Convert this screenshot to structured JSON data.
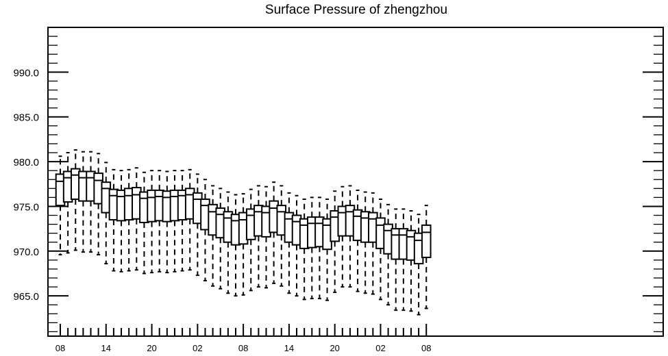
{
  "chart_data": {
    "type": "box",
    "title": "Surface Pressure of zhengzhou",
    "xlabel": "",
    "ylabel": "",
    "ylim": [
      960.5,
      995.0
    ],
    "y_ticks": [
      "990.0",
      "985.0",
      "980.0",
      "975.0",
      "970.0",
      "965.0"
    ],
    "y_tick_values": [
      990,
      985,
      980,
      975,
      970,
      965
    ],
    "x_ticks": [
      "08",
      "14",
      "20",
      "02",
      "08",
      "14",
      "20",
      "02",
      "08"
    ],
    "x_tick_steps": [
      0,
      6,
      12,
      18,
      24,
      30,
      36,
      42,
      48
    ],
    "grid": false,
    "boxes": [
      {
        "step": 0,
        "whisker_low": 969.6,
        "q1": 975.1,
        "median": 977.8,
        "q3": 978.6,
        "whisker_high": 980.6
      },
      {
        "step": 1,
        "whisker_low": 969.8,
        "q1": 975.5,
        "median": 978.2,
        "q3": 978.9,
        "whisker_high": 981.0
      },
      {
        "step": 2,
        "whisker_low": 970.1,
        "q1": 975.8,
        "median": 978.5,
        "q3": 979.2,
        "whisker_high": 981.3
      },
      {
        "step": 3,
        "whisker_low": 969.9,
        "q1": 975.6,
        "median": 978.2,
        "q3": 978.9,
        "whisker_high": 981.1
      },
      {
        "step": 4,
        "whisker_low": 969.9,
        "q1": 975.6,
        "median": 978.2,
        "q3": 978.9,
        "whisker_high": 981.1
      },
      {
        "step": 5,
        "whisker_low": 969.6,
        "q1": 975.3,
        "median": 977.9,
        "q3": 978.7,
        "whisker_high": 980.9
      },
      {
        "step": 6,
        "whisker_low": 968.6,
        "q1": 974.3,
        "median": 977.0,
        "q3": 977.7,
        "whisker_high": 979.9
      },
      {
        "step": 7,
        "whisker_low": 967.8,
        "q1": 973.5,
        "median": 976.2,
        "q3": 976.9,
        "whisker_high": 979.1
      },
      {
        "step": 8,
        "whisker_low": 967.7,
        "q1": 973.4,
        "median": 976.1,
        "q3": 976.8,
        "whisker_high": 979.0
      },
      {
        "step": 9,
        "whisker_low": 967.8,
        "q1": 973.5,
        "median": 976.2,
        "q3": 977.0,
        "whisker_high": 979.1
      },
      {
        "step": 10,
        "whisker_low": 967.9,
        "q1": 973.6,
        "median": 976.3,
        "q3": 977.1,
        "whisker_high": 979.3
      },
      {
        "step": 11,
        "whisker_low": 967.5,
        "q1": 973.2,
        "median": 975.9,
        "q3": 976.6,
        "whisker_high": 978.8
      },
      {
        "step": 12,
        "whisker_low": 967.6,
        "q1": 973.3,
        "median": 976.0,
        "q3": 976.8,
        "whisker_high": 979.0
      },
      {
        "step": 13,
        "whisker_low": 967.7,
        "q1": 973.4,
        "median": 976.1,
        "q3": 976.8,
        "whisker_high": 979.0
      },
      {
        "step": 14,
        "whisker_low": 967.6,
        "q1": 973.3,
        "median": 976.0,
        "q3": 976.7,
        "whisker_high": 978.9
      },
      {
        "step": 15,
        "whisker_low": 967.7,
        "q1": 973.4,
        "median": 976.1,
        "q3": 976.8,
        "whisker_high": 979.0
      },
      {
        "step": 16,
        "whisker_low": 967.8,
        "q1": 973.5,
        "median": 976.2,
        "q3": 976.8,
        "whisker_high": 979.0
      },
      {
        "step": 17,
        "whisker_low": 967.9,
        "q1": 973.6,
        "median": 976.3,
        "q3": 977.0,
        "whisker_high": 979.1
      },
      {
        "step": 18,
        "whisker_low": 967.3,
        "q1": 973.1,
        "median": 975.8,
        "q3": 976.5,
        "whisker_high": 978.6
      },
      {
        "step": 19,
        "whisker_low": 966.7,
        "q1": 972.4,
        "median": 975.1,
        "q3": 975.8,
        "whisker_high": 978.0
      },
      {
        "step": 20,
        "whisker_low": 966.1,
        "q1": 971.8,
        "median": 974.4,
        "q3": 975.2,
        "whisker_high": 977.3
      },
      {
        "step": 21,
        "whisker_low": 965.8,
        "q1": 971.5,
        "median": 974.1,
        "q3": 974.8,
        "whisker_high": 977.0
      },
      {
        "step": 22,
        "whisker_low": 965.3,
        "q1": 971.0,
        "median": 973.7,
        "q3": 974.4,
        "whisker_high": 976.6
      },
      {
        "step": 23,
        "whisker_low": 965.0,
        "q1": 970.7,
        "median": 973.4,
        "q3": 974.1,
        "whisker_high": 976.3
      },
      {
        "step": 24,
        "whisker_low": 965.1,
        "q1": 970.8,
        "median": 973.5,
        "q3": 974.3,
        "whisker_high": 976.4
      },
      {
        "step": 25,
        "whisker_low": 965.6,
        "q1": 971.3,
        "median": 974.0,
        "q3": 974.7,
        "whisker_high": 976.9
      },
      {
        "step": 26,
        "whisker_low": 966.0,
        "q1": 971.7,
        "median": 974.4,
        "q3": 975.1,
        "whisker_high": 977.3
      },
      {
        "step": 27,
        "whisker_low": 965.9,
        "q1": 971.6,
        "median": 974.3,
        "q3": 975.0,
        "whisker_high": 977.2
      },
      {
        "step": 28,
        "whisker_low": 966.4,
        "q1": 972.1,
        "median": 974.8,
        "q3": 975.6,
        "whisker_high": 977.7
      },
      {
        "step": 29,
        "whisker_low": 966.1,
        "q1": 971.8,
        "median": 974.4,
        "q3": 975.1,
        "whisker_high": 977.3
      },
      {
        "step": 30,
        "whisker_low": 965.3,
        "q1": 971.0,
        "median": 973.6,
        "q3": 974.3,
        "whisker_high": 976.5
      },
      {
        "step": 31,
        "whisker_low": 965.0,
        "q1": 970.7,
        "median": 973.3,
        "q3": 974.0,
        "whisker_high": 976.2
      },
      {
        "step": 32,
        "whisker_low": 964.6,
        "q1": 970.3,
        "median": 972.9,
        "q3": 973.6,
        "whisker_high": 975.8
      },
      {
        "step": 33,
        "whisker_low": 964.7,
        "q1": 970.4,
        "median": 973.1,
        "q3": 973.8,
        "whisker_high": 976.0
      },
      {
        "step": 34,
        "whisker_low": 964.7,
        "q1": 970.5,
        "median": 973.1,
        "q3": 973.8,
        "whisker_high": 976.0
      },
      {
        "step": 35,
        "whisker_low": 964.5,
        "q1": 970.2,
        "median": 972.9,
        "q3": 973.6,
        "whisker_high": 975.8
      },
      {
        "step": 36,
        "whisker_low": 965.4,
        "q1": 971.1,
        "median": 973.8,
        "q3": 974.5,
        "whisker_high": 976.7
      },
      {
        "step": 37,
        "whisker_low": 966.0,
        "q1": 971.7,
        "median": 974.3,
        "q3": 975.0,
        "whisker_high": 977.2
      },
      {
        "step": 38,
        "whisker_low": 966.0,
        "q1": 971.7,
        "median": 974.4,
        "q3": 975.1,
        "whisker_high": 977.3
      },
      {
        "step": 39,
        "whisker_low": 965.5,
        "q1": 971.2,
        "median": 973.9,
        "q3": 974.6,
        "whisker_high": 976.8
      },
      {
        "step": 40,
        "whisker_low": 965.3,
        "q1": 971.0,
        "median": 973.7,
        "q3": 974.4,
        "whisker_high": 976.6
      },
      {
        "step": 41,
        "whisker_low": 965.2,
        "q1": 971.0,
        "median": 973.6,
        "q3": 974.3,
        "whisker_high": 976.5
      },
      {
        "step": 42,
        "whisker_low": 964.6,
        "q1": 970.3,
        "median": 972.9,
        "q3": 973.7,
        "whisker_high": 975.8
      },
      {
        "step": 43,
        "whisker_low": 964.0,
        "q1": 969.7,
        "median": 972.3,
        "q3": 973.0,
        "whisker_high": 975.2
      },
      {
        "step": 44,
        "whisker_low": 963.4,
        "q1": 969.1,
        "median": 971.8,
        "q3": 972.5,
        "whisker_high": 974.7
      },
      {
        "step": 45,
        "whisker_low": 963.4,
        "q1": 969.1,
        "median": 971.8,
        "q3": 972.5,
        "whisker_high": 974.7
      },
      {
        "step": 46,
        "whisker_low": 963.3,
        "q1": 969.0,
        "median": 971.6,
        "q3": 972.3,
        "whisker_high": 974.5
      },
      {
        "step": 47,
        "whisker_low": 962.9,
        "q1": 968.6,
        "median": 971.2,
        "q3": 972.0,
        "whisker_high": 974.1
      },
      {
        "step": 48,
        "whisker_low": 963.6,
        "q1": 969.3,
        "median": 972.1,
        "q3": 972.9,
        "whisker_high": 975.1
      }
    ]
  }
}
